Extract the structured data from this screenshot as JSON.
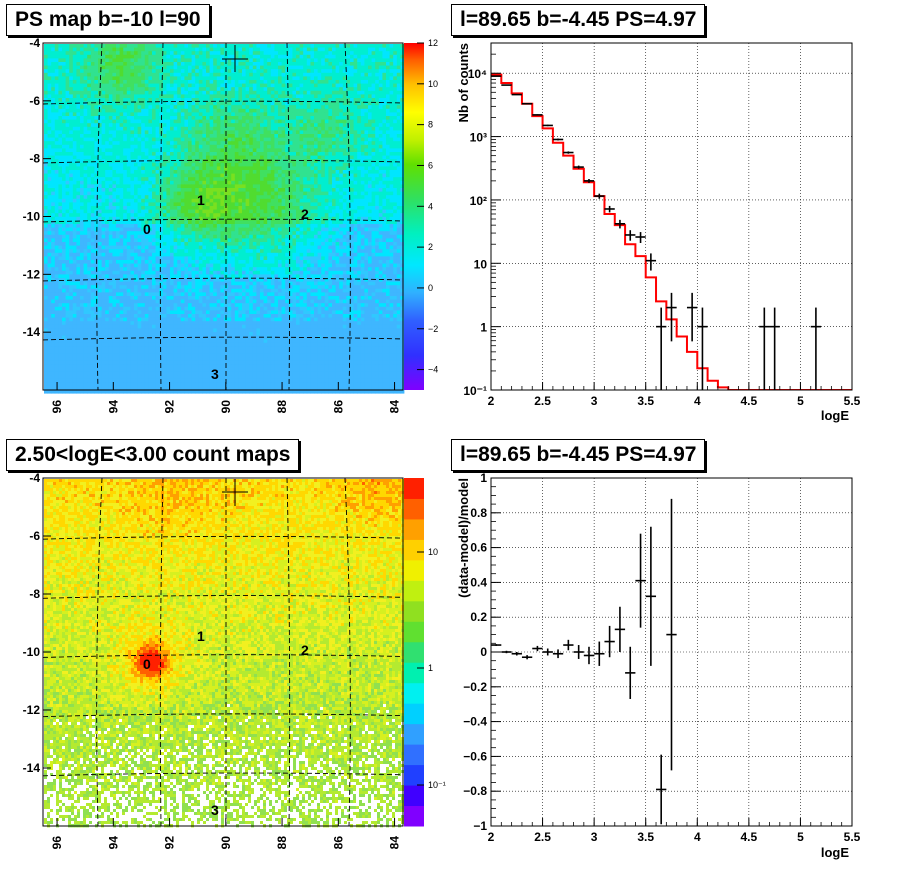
{
  "panels": {
    "ps_map": {
      "title": "PS map b=-10 l=90",
      "colorbar_ticks": [
        "12",
        "10",
        "8",
        "6",
        "4",
        "2",
        "0",
        "−2",
        "−4"
      ],
      "markers": [
        "0",
        "1",
        "2",
        "3"
      ]
    },
    "spectrum": {
      "title": "l=89.65 b=-4.45 PS=4.97"
    },
    "count_map": {
      "title": "2.50<logE<3.00 count maps",
      "colorbar_ticks": [
        "10",
        "1",
        "10⁻¹"
      ],
      "markers": [
        "0",
        "1",
        "2",
        "3"
      ]
    },
    "residual": {
      "title": "l=89.65 b=-4.45 PS=4.97"
    }
  },
  "chart_data": [
    {
      "type": "heatmap",
      "title": "PS map b=-10 l=90",
      "x_ticks": [
        "96",
        "94",
        "92",
        "90",
        "88",
        "86",
        "84"
      ],
      "y_ticks": [
        "-4",
        "-6",
        "-8",
        "-10",
        "-12",
        "-14"
      ],
      "xlim": [
        96.5,
        83.7
      ],
      "ylim": [
        -16,
        -4
      ],
      "zlim": [
        -5,
        12
      ],
      "grid": true,
      "source_positions": [
        {
          "label": "0",
          "l": 92.7,
          "b": -10.3
        },
        {
          "label": "1",
          "l": 90.8,
          "b": -9.4
        },
        {
          "label": "2",
          "l": 87.4,
          "b": -9.9
        },
        {
          "label": "3",
          "l": 90.6,
          "b": -15.4
        }
      ],
      "cross_position": {
        "l": 89.65,
        "b": -4.45
      }
    },
    {
      "type": "line",
      "title": "l=89.65 b=-4.45 PS=4.97",
      "xlabel": "logE",
      "ylabel": "Nb of counts",
      "xlim": [
        2,
        5.5
      ],
      "ylim": [
        0.1,
        30000
      ],
      "y_scale": "log",
      "x_ticks": [
        "2",
        "2.5",
        "3",
        "3.5",
        "4",
        "4.5",
        "5",
        "5.5"
      ],
      "y_ticks": [
        "10⁻¹",
        "1",
        "10",
        "10²",
        "10³",
        "10⁴"
      ],
      "grid": true,
      "series": [
        {
          "style": "points with error bars",
          "color": "#000000",
          "x": [
            2.05,
            2.15,
            2.25,
            2.35,
            2.45,
            2.55,
            2.65,
            2.75,
            2.85,
            2.95,
            3.05,
            3.15,
            3.25,
            3.35,
            3.45,
            3.55,
            3.65,
            3.75,
            3.95,
            4.05,
            4.65,
            4.75,
            5.15
          ],
          "y": [
            9000,
            6500,
            4600,
            3300,
            2200,
            1500,
            900,
            560,
            330,
            200,
            115,
            72,
            42,
            28,
            26,
            11,
            1,
            2,
            2,
            1,
            1,
            1,
            1
          ]
        },
        {
          "style": "step histogram",
          "color": "#ff0000",
          "x": [
            2.0,
            2.1,
            2.2,
            2.3,
            2.4,
            2.5,
            2.6,
            2.7,
            2.8,
            2.9,
            3.0,
            3.1,
            3.2,
            3.3,
            3.4,
            3.5,
            3.6,
            3.7,
            3.8,
            3.9,
            4.0,
            4.1,
            4.2,
            4.3,
            4.4,
            4.5,
            4.6,
            4.7,
            4.8,
            4.9,
            5.0,
            5.1,
            5.2,
            5.3,
            5.4
          ],
          "y": [
            9500,
            7000,
            4800,
            3300,
            2100,
            1350,
            800,
            500,
            310,
            190,
            115,
            60,
            40,
            20,
            13,
            6,
            2.5,
            1.3,
            0.7,
            0.4,
            0.22,
            0.14,
            0.11,
            0.1,
            0.1,
            0.1,
            0.1,
            0.1,
            0.1,
            0.1,
            0.1,
            0.1,
            0.1,
            0.1,
            0.1
          ]
        }
      ]
    },
    {
      "type": "heatmap",
      "title": "2.50<logE<3.00 count maps",
      "x_ticks": [
        "96",
        "94",
        "92",
        "90",
        "88",
        "86",
        "84"
      ],
      "y_ticks": [
        "-4",
        "-6",
        "-8",
        "-10",
        "-12",
        "-14"
      ],
      "xlim": [
        96.5,
        83.7
      ],
      "ylim": [
        -16,
        -4
      ],
      "z_scale": "log",
      "grid": true,
      "source_positions": [
        {
          "label": "0",
          "l": 92.7,
          "b": -10.3
        },
        {
          "label": "1",
          "l": 90.8,
          "b": -9.4
        },
        {
          "label": "2",
          "l": 87.4,
          "b": -9.9
        },
        {
          "label": "3",
          "l": 90.6,
          "b": -15.4
        }
      ],
      "cross_position": {
        "l": 89.65,
        "b": -4.45
      }
    },
    {
      "type": "scatter",
      "title": "l=89.65 b=-4.45 PS=4.97",
      "xlabel": "logE",
      "ylabel": "(data-model)/model",
      "xlim": [
        2,
        5.5
      ],
      "ylim": [
        -1,
        1
      ],
      "x_ticks": [
        "2",
        "2.5",
        "3",
        "3.5",
        "4",
        "4.5",
        "5",
        "5.5"
      ],
      "y_ticks": [
        "−1",
        "−0.8",
        "−0.6",
        "−0.4",
        "−0.2",
        "0",
        "0.2",
        "0.4",
        "0.6",
        "0.8",
        "1"
      ],
      "grid": true,
      "series": [
        {
          "style": "points with error bars",
          "color": "#000000",
          "x": [
            2.05,
            2.15,
            2.25,
            2.35,
            2.45,
            2.55,
            2.65,
            2.75,
            2.85,
            2.95,
            3.05,
            3.15,
            3.25,
            3.35,
            3.45,
            3.55,
            3.65,
            3.75
          ],
          "y": [
            0.04,
            0.0,
            -0.01,
            -0.03,
            0.02,
            0.0,
            -0.01,
            0.04,
            0.0,
            -0.02,
            -0.01,
            0.06,
            0.13,
            -0.12,
            0.41,
            0.32,
            -0.79,
            0.1
          ],
          "err": [
            0.005,
            0.007,
            0.01,
            0.012,
            0.015,
            0.02,
            0.025,
            0.03,
            0.04,
            0.05,
            0.07,
            0.09,
            0.13,
            0.15,
            0.27,
            0.4,
            0.2,
            0.78
          ]
        }
      ]
    }
  ]
}
